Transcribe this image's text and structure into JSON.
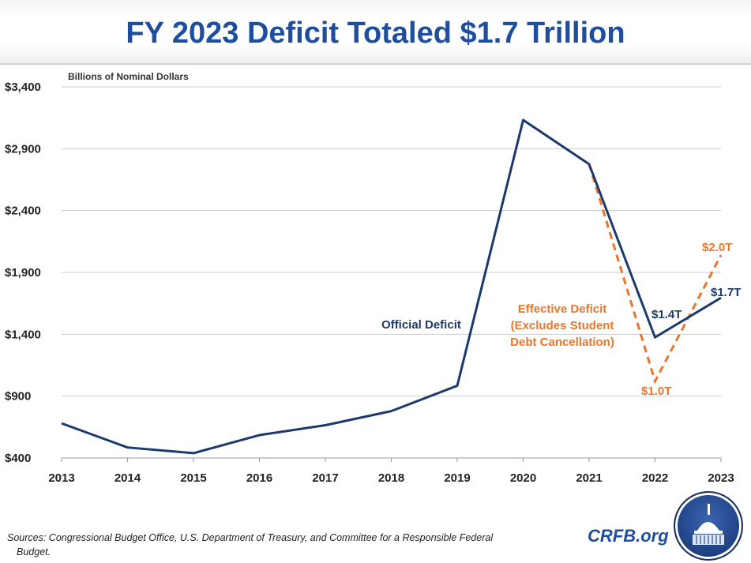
{
  "title": "FY 2023 Deficit Totaled $1.7 Trillion",
  "unit_label": "Billions of Nominal Dollars",
  "sources_line1": "Sources: Congressional Budget Office, U.S. Department of Treasury, and Committee for a Responsible Federal",
  "sources_line2": "Budget.",
  "brand": "CRFB.org",
  "colors": {
    "official": "#1b3a6b",
    "effective": "#e8762c",
    "title": "#1f4e9c",
    "grid": "#cccccc"
  },
  "chart_data": {
    "type": "line",
    "title": "FY 2023 Deficit Totaled $1.7 Trillion",
    "ylabel": "Billions of Nominal Dollars",
    "ylim": [
      400,
      3400
    ],
    "yticks": [
      400,
      900,
      1400,
      1900,
      2400,
      2900,
      3400
    ],
    "ytick_labels": [
      "$400",
      "$900",
      "$1,400",
      "$1,900",
      "$2,400",
      "$2,900",
      "$3,400"
    ],
    "grid": true,
    "categories": [
      "2013",
      "2014",
      "2015",
      "2016",
      "2017",
      "2018",
      "2019",
      "2020",
      "2021",
      "2022",
      "2023"
    ],
    "series": [
      {
        "name": "Official Deficit",
        "style": "solid",
        "values": [
          680,
          485,
          439,
          585,
          665,
          779,
          984,
          3132,
          2775,
          1375,
          1695
        ]
      },
      {
        "name": "Effective Deficit (Excludes Student Debt Cancellation)",
        "style": "dashed",
        "x": [
          "2021",
          "2022",
          "2023"
        ],
        "values": [
          2775,
          1020,
          2040
        ]
      }
    ],
    "annotations": [
      {
        "text": "Official Deficit",
        "series": 0
      },
      {
        "text_lines": [
          "Effective Deficit",
          "(Excludes Student",
          "Debt Cancellation)"
        ],
        "series": 1
      },
      {
        "text": "$1.4T",
        "x": "2022",
        "series": 0
      },
      {
        "text": "$1.7T",
        "x": "2023",
        "series": 0
      },
      {
        "text": "$1.0T",
        "x": "2022",
        "series": 1
      },
      {
        "text": "$2.0T",
        "x": "2023",
        "series": 1
      }
    ]
  }
}
